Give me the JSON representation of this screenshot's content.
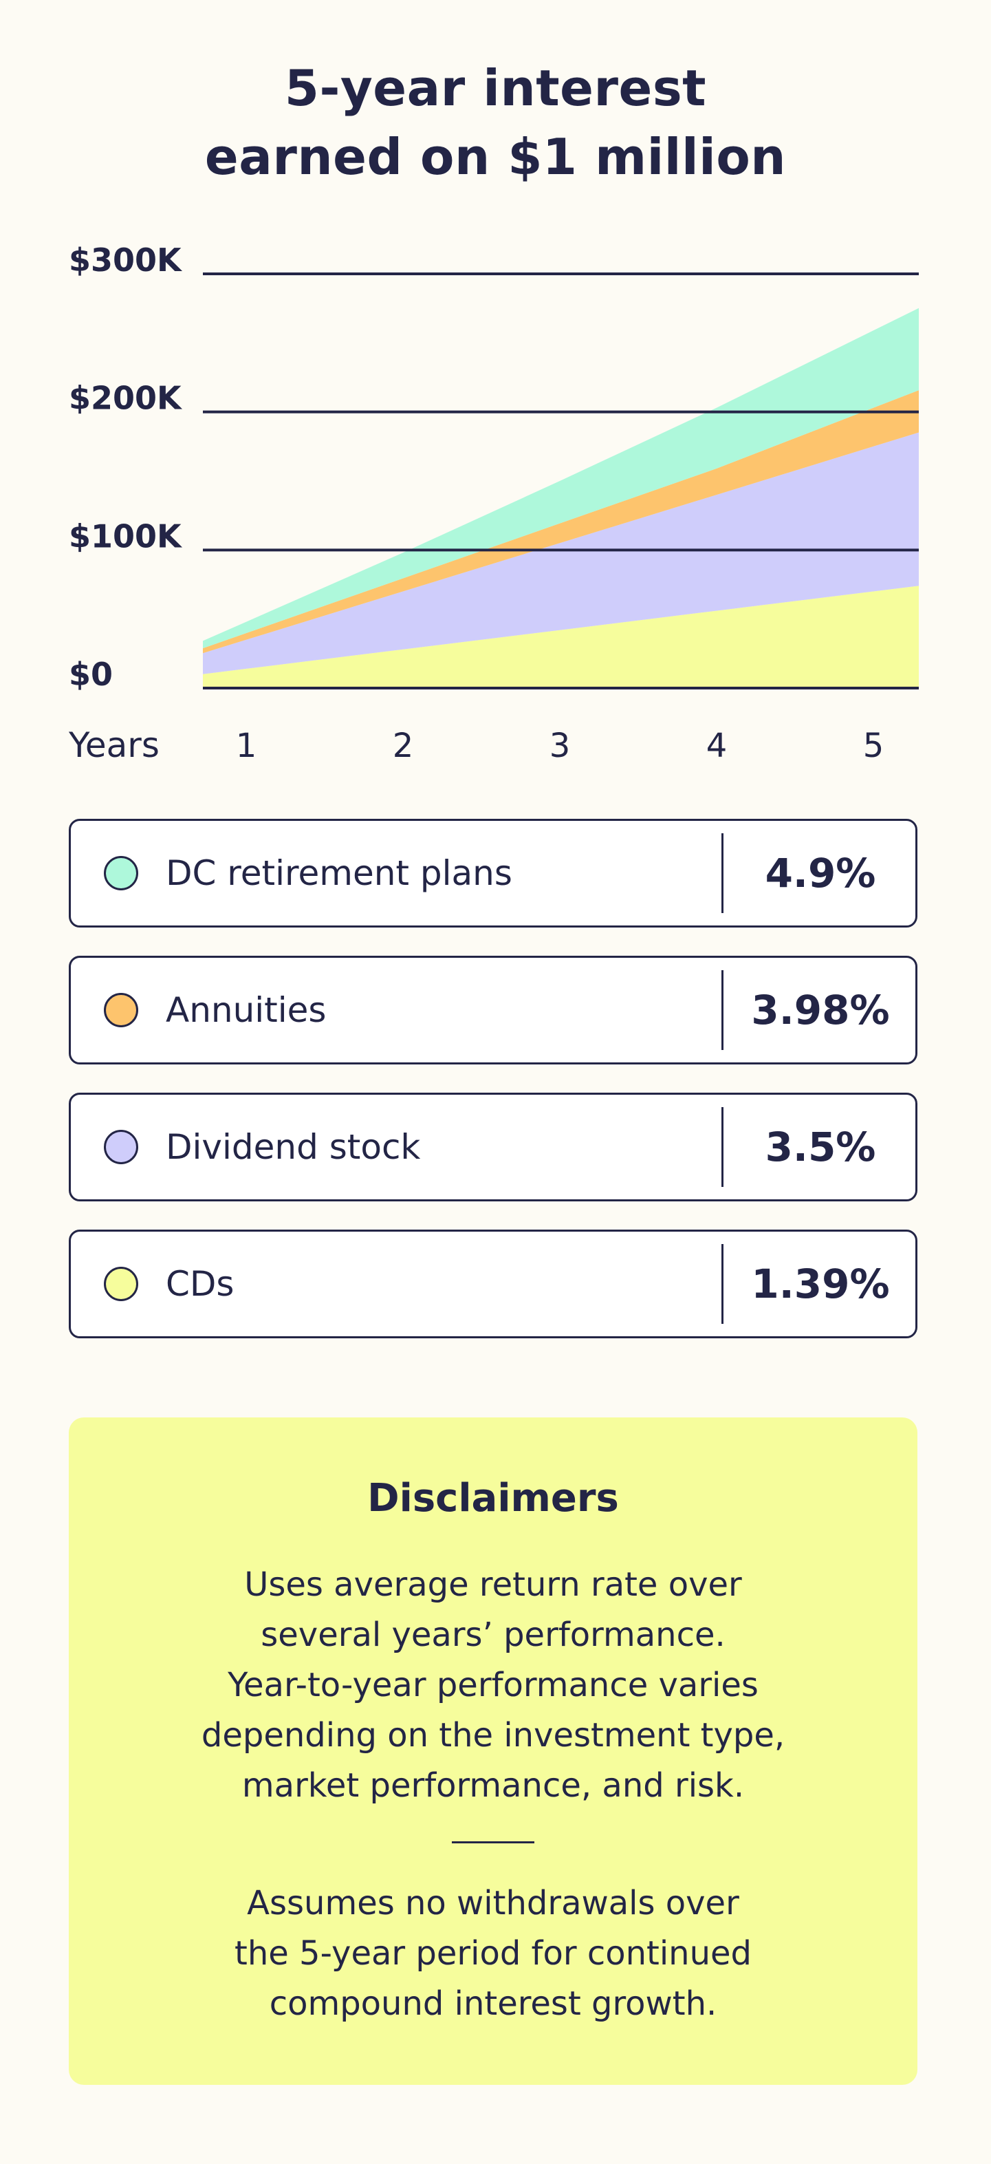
{
  "header": {
    "title_line1": "5-year interest",
    "title_line2": "earned on $1 million"
  },
  "chart_data": {
    "type": "area",
    "stacked": true,
    "xlabel": "Years",
    "x": [
      1,
      2,
      3,
      4,
      5
    ],
    "y_ticks": [
      "$0",
      "$100K",
      "$200K",
      "$300K"
    ],
    "ylim": [
      0,
      300000
    ],
    "grid": true,
    "series": [
      {
        "name": "CDs",
        "color": "#f6fd9c",
        "values": [
          14000,
          28000,
          42000,
          56000,
          70000
        ]
      },
      {
        "name": "Dividend stock",
        "color": "#cfcdfb",
        "values": [
          21000,
          42000,
          63000,
          84000,
          105000
        ]
      },
      {
        "name": "Annuities",
        "color": "#fdc46d",
        "values": [
          4800,
          9500,
          14300,
          19000,
          28000
        ]
      },
      {
        "name": "DC retirement plans",
        "color": "#aef8db",
        "values": [
          8200,
          18500,
          30700,
          44000,
          56000
        ]
      }
    ]
  },
  "legend": {
    "items": [
      {
        "label": "DC retirement plans",
        "value": "4.9%",
        "color": "#aef8db"
      },
      {
        "label": "Annuities",
        "value": "3.98%",
        "color": "#fdc46d"
      },
      {
        "label": "Dividend stock",
        "value": "3.5%",
        "color": "#cfcdfb"
      },
      {
        "label": "CDs",
        "value": "1.39%",
        "color": "#f6fd9c"
      }
    ]
  },
  "disclaimers": {
    "title": "Disclaimers",
    "paragraph1": [
      "Uses average return rate over",
      "several years’ performance.",
      "Year-to-year performance varies",
      "depending on the investment type,",
      "market performance, and risk."
    ],
    "paragraph2": [
      "Assumes no withdrawals over",
      "the 5-year period for continued",
      "compound interest growth."
    ]
  },
  "colors": {
    "background": "#fdfbf4",
    "ink": "#232546",
    "disclaimer_bg": "#f6fd9c"
  }
}
